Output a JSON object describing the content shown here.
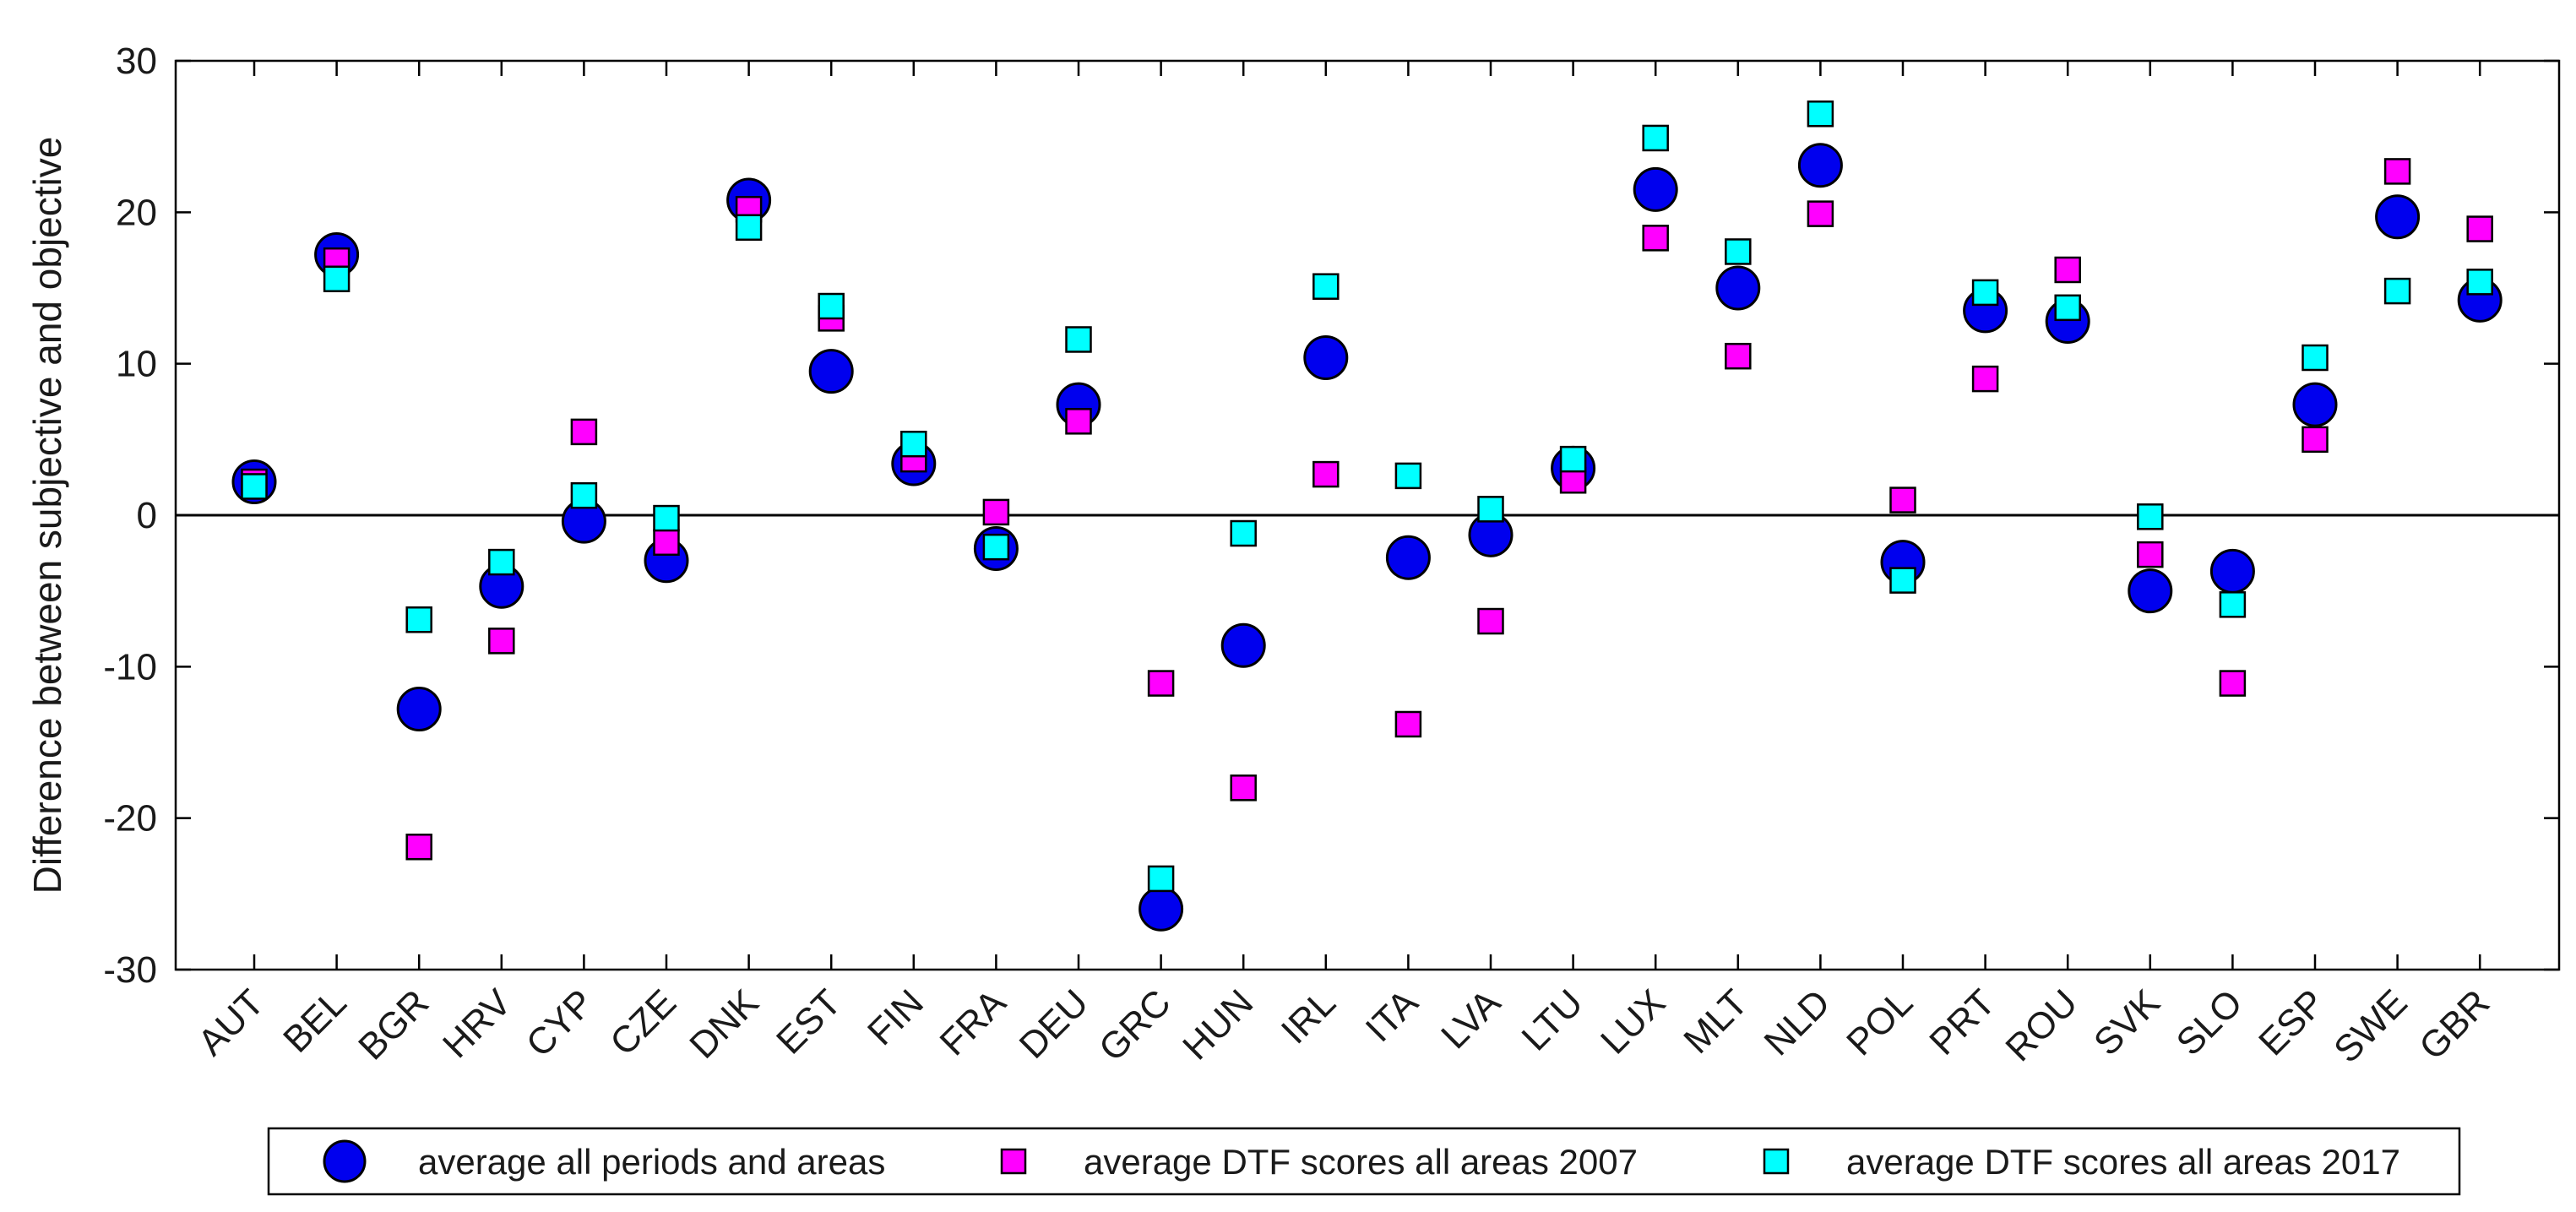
{
  "chart_data": {
    "type": "scatter",
    "title": "",
    "xlabel": "",
    "ylabel": "Difference between subjective and objective",
    "ylim": [
      -30,
      30
    ],
    "yticks": [
      -30,
      -20,
      -10,
      0,
      10,
      20,
      30
    ],
    "categories": [
      "AUT",
      "BEL",
      "BGR",
      "HRV",
      "CYP",
      "CZE",
      "DNK",
      "EST",
      "FIN",
      "FRA",
      "DEU",
      "GRC",
      "HUN",
      "IRL",
      "ITA",
      "LVA",
      "LTU",
      "LUX",
      "MLT",
      "NLD",
      "POL",
      "PRT",
      "ROU",
      "SVK",
      "SLO",
      "ESP",
      "SWE",
      "GBR"
    ],
    "series": [
      {
        "name": "average all periods and areas",
        "marker": "circle",
        "color": "#0000ee",
        "values": [
          2.2,
          17.2,
          -12.8,
          -4.7,
          -0.4,
          -3.0,
          20.8,
          9.5,
          3.4,
          -2.2,
          7.3,
          -26.0,
          -8.6,
          10.4,
          -2.8,
          -1.3,
          3.1,
          21.5,
          15.0,
          23.1,
          -3.1,
          13.5,
          12.8,
          -5.0,
          -3.7,
          7.3,
          19.7,
          14.2
        ]
      },
      {
        "name": "average DTF scores all areas 2007",
        "marker": "square",
        "color": "#ff00ff",
        "values": [
          2.2,
          16.8,
          -21.9,
          -8.3,
          5.5,
          -1.8,
          20.2,
          13.0,
          3.7,
          0.2,
          6.2,
          -11.1,
          -18.0,
          2.7,
          -13.8,
          -7.0,
          2.3,
          18.3,
          10.5,
          19.9,
          1.0,
          9.0,
          16.2,
          -2.6,
          -11.1,
          5.0,
          22.7,
          18.9
        ]
      },
      {
        "name": "average DTF scores all areas 2017",
        "marker": "square",
        "color": "#00ffff",
        "values": [
          1.9,
          15.6,
          -6.9,
          -3.1,
          1.3,
          -0.2,
          19.0,
          13.8,
          4.7,
          -2.1,
          11.6,
          -24.0,
          -1.2,
          15.1,
          2.6,
          0.4,
          3.7,
          24.9,
          17.4,
          26.5,
          -4.3,
          14.7,
          13.7,
          -0.1,
          -5.9,
          10.4,
          14.8,
          15.4
        ]
      }
    ],
    "reference_line": 0,
    "legend_position": "bottom"
  }
}
